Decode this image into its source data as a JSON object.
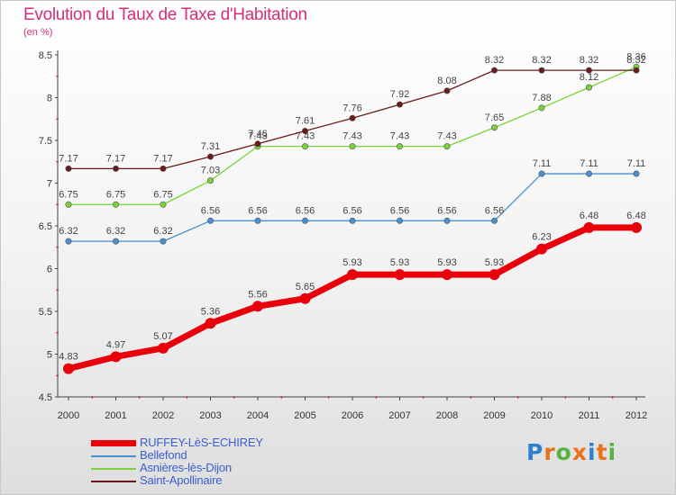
{
  "title": "Evolution du Taux de Taxe d'Habitation",
  "subtitle": "(en %)",
  "logo": {
    "text": "Proxiti",
    "colors": [
      "#2f7fd0",
      "#e8731c",
      "#57b33f",
      "#e8731c",
      "#2f7fd0",
      "#e8731c",
      "#57b33f"
    ]
  },
  "chart_data": {
    "type": "line",
    "x": [
      "2000",
      "2001",
      "2002",
      "2003",
      "2004",
      "2005",
      "2006",
      "2007",
      "2008",
      "2009",
      "2010",
      "2011",
      "2012"
    ],
    "ylim": [
      4.5,
      8.5
    ],
    "yticks": [
      "4.5",
      "5",
      "5.5",
      "6",
      "6.5",
      "7",
      "7.5",
      "8",
      "8.5"
    ],
    "grid": false,
    "legend": "bottom-left",
    "series": [
      {
        "name": "RUFFEY-LèS-ECHIREY",
        "color": "#e8000b",
        "emphasis": true,
        "values": [
          4.83,
          4.97,
          5.07,
          5.36,
          5.56,
          5.65,
          5.93,
          5.93,
          5.93,
          5.93,
          6.23,
          6.48,
          6.48
        ],
        "labels": [
          "4.83",
          "4.97",
          "5.07",
          "5.36",
          "5.56",
          "5.65",
          "5.93",
          "5.93",
          "5.93",
          "5.93",
          "6.23",
          "6.48",
          "6.48"
        ]
      },
      {
        "name": "Bellefond",
        "color": "#4a8fd0",
        "values": [
          6.32,
          6.32,
          6.32,
          6.56,
          6.56,
          6.56,
          6.56,
          6.56,
          6.56,
          6.56,
          7.11,
          7.11,
          7.11
        ],
        "labels": [
          "6.32",
          "6.32",
          "6.32",
          "6.56",
          "6.56",
          "6.56",
          "6.56",
          "6.56",
          "6.56",
          "6.56",
          "7.11",
          "7.11",
          "7.11"
        ]
      },
      {
        "name": "Asnières-lès-Dijon",
        "color": "#7bd33a",
        "values": [
          6.75,
          6.75,
          6.75,
          7.03,
          7.43,
          7.43,
          7.43,
          7.43,
          7.43,
          7.65,
          7.88,
          8.12,
          8.36
        ],
        "labels": [
          "6.75",
          "6.75",
          "6.75",
          "7.03",
          "7.43",
          "7.43",
          "7.43",
          "7.43",
          "7.43",
          "7.65",
          "7.88",
          "8.12",
          "8.36"
        ]
      },
      {
        "name": "Saint-Apollinaire",
        "color": "#6b1a1a",
        "values": [
          7.17,
          7.17,
          7.17,
          7.31,
          7.46,
          7.61,
          7.76,
          7.92,
          8.08,
          8.32,
          8.32,
          8.32,
          8.32
        ],
        "labels": [
          "7.17",
          "7.17",
          "7.17",
          "7.31",
          "7.46",
          "7.61",
          "7.76",
          "7.92",
          "8.08",
          "8.32",
          "8.32",
          "8.32",
          "8.32"
        ]
      }
    ]
  }
}
